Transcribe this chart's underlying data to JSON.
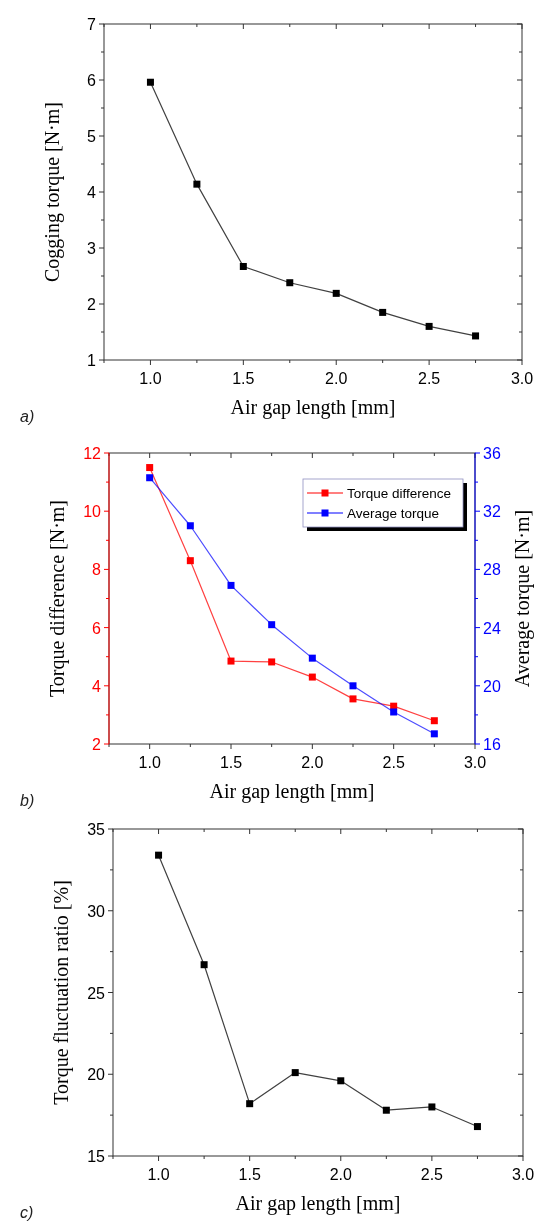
{
  "chart_data": [
    {
      "type": "line",
      "x": [
        1.0,
        1.25,
        1.5,
        1.75,
        2.0,
        2.25,
        2.5,
        2.75
      ],
      "xlabel": "Air gap length [mm]",
      "ylabel": "Cogging torque  [N·m]",
      "annotations": [
        "a)"
      ],
      "series": [
        {
          "color": "#000000",
          "values": [
            5.96,
            4.14,
            2.67,
            2.38,
            2.19,
            1.85,
            1.6,
            1.43
          ]
        }
      ],
      "xlim": [
        0.75,
        3.0
      ],
      "xticks": [
        {
          "value": 1.0,
          "label": "1.0"
        },
        {
          "value": 1.5,
          "label": "1.5"
        },
        {
          "value": 2.0,
          "label": "2.0"
        },
        {
          "value": 2.5,
          "label": "2.5"
        },
        {
          "value": 3.0,
          "label": "3.0"
        },
        {
          "value": 0.75,
          "label": null
        },
        {
          "value": 1.25,
          "label": null
        },
        {
          "value": 1.75,
          "label": null
        },
        {
          "value": 2.25,
          "label": null
        },
        {
          "value": 2.75,
          "label": null
        }
      ],
      "ylim": [
        1,
        7
      ],
      "yticks": [
        1,
        2,
        3,
        4,
        5,
        6,
        7,
        {
          "value": 1.5,
          "label": null
        },
        {
          "value": 2.5,
          "label": null
        },
        {
          "value": 3.5,
          "label": null
        },
        {
          "value": 4.5,
          "label": null
        },
        {
          "value": 5.5,
          "label": null
        },
        {
          "value": 6.5,
          "label": null
        }
      ],
      "marker": "square",
      "grid": false,
      "legend": false
    },
    {
      "type": "line",
      "x": [
        1.0,
        1.25,
        1.5,
        1.75,
        2.0,
        2.25,
        2.5,
        2.75
      ],
      "xlabel": "Air gap length [mm]",
      "ylabel": "Torque difference  [N·m]",
      "y2label": "Average torque  [N·m]",
      "annotations": [
        "b)"
      ],
      "series": [
        {
          "name": "Torque difference",
          "color": "#ff0000",
          "values": [
            11.5,
            8.3,
            4.85,
            4.82,
            4.3,
            3.55,
            3.3,
            2.8
          ]
        },
        {
          "name": "Average torque",
          "color": "#0000ff",
          "axis": "y2",
          "values": [
            34.3,
            31.0,
            26.9,
            24.2,
            21.9,
            20.0,
            18.2,
            16.7
          ]
        }
      ],
      "xlim": [
        0.75,
        3.0
      ],
      "xticks": [
        {
          "value": 1.0,
          "label": "1.0"
        },
        {
          "value": 1.5,
          "label": "1.5"
        },
        {
          "value": 2.0,
          "label": "2.0"
        },
        {
          "value": 2.5,
          "label": "2.5"
        },
        {
          "value": 3.0,
          "label": "3.0"
        },
        {
          "value": 0.75,
          "label": null
        },
        {
          "value": 1.25,
          "label": null
        },
        {
          "value": 1.75,
          "label": null
        },
        {
          "value": 2.25,
          "label": null
        },
        {
          "value": 2.75,
          "label": null
        }
      ],
      "ylim": [
        2,
        12
      ],
      "yticks": [
        2,
        4,
        6,
        8,
        10,
        12,
        {
          "value": 3,
          "label": null
        },
        {
          "value": 5,
          "label": null
        },
        {
          "value": 7,
          "label": null
        },
        {
          "value": 9,
          "label": null
        },
        {
          "value": 11,
          "label": null
        }
      ],
      "y2lim": [
        16,
        36
      ],
      "y2ticks": [
        16,
        20,
        24,
        28,
        32,
        36,
        {
          "value": 18,
          "label": null
        },
        {
          "value": 22,
          "label": null
        },
        {
          "value": 26,
          "label": null
        },
        {
          "value": 30,
          "label": null
        },
        {
          "value": 34,
          "label": null
        }
      ],
      "marker": "square",
      "grid": false,
      "legend": "top right"
    },
    {
      "type": "line",
      "x": [
        1.0,
        1.25,
        1.5,
        1.75,
        2.0,
        2.25,
        2.5,
        2.75
      ],
      "xlabel": "Air gap length [mm]",
      "ylabel": "Torque fluctuation ratio  [%]",
      "annotations": [
        "c)"
      ],
      "series": [
        {
          "color": "#000000",
          "values": [
            33.4,
            26.7,
            18.2,
            20.1,
            19.6,
            17.8,
            18.0,
            16.8
          ]
        }
      ],
      "xlim": [
        0.75,
        3.0
      ],
      "xticks": [
        {
          "value": 1.0,
          "label": "1.0"
        },
        {
          "value": 1.5,
          "label": "1.5"
        },
        {
          "value": 2.0,
          "label": "2.0"
        },
        {
          "value": 2.5,
          "label": "2.5"
        },
        {
          "value": 3.0,
          "label": "3.0"
        },
        {
          "value": 0.75,
          "label": null
        },
        {
          "value": 1.25,
          "label": null
        },
        {
          "value": 1.75,
          "label": null
        },
        {
          "value": 2.25,
          "label": null
        },
        {
          "value": 2.75,
          "label": null
        }
      ],
      "ylim": [
        15,
        35
      ],
      "yticks": [
        15,
        20,
        25,
        30,
        35,
        {
          "value": 17.5,
          "label": null
        },
        {
          "value": 22.5,
          "label": null
        },
        {
          "value": 27.5,
          "label": null
        },
        {
          "value": 32.5,
          "label": null
        }
      ],
      "marker": "square",
      "grid": false,
      "legend": false
    }
  ]
}
